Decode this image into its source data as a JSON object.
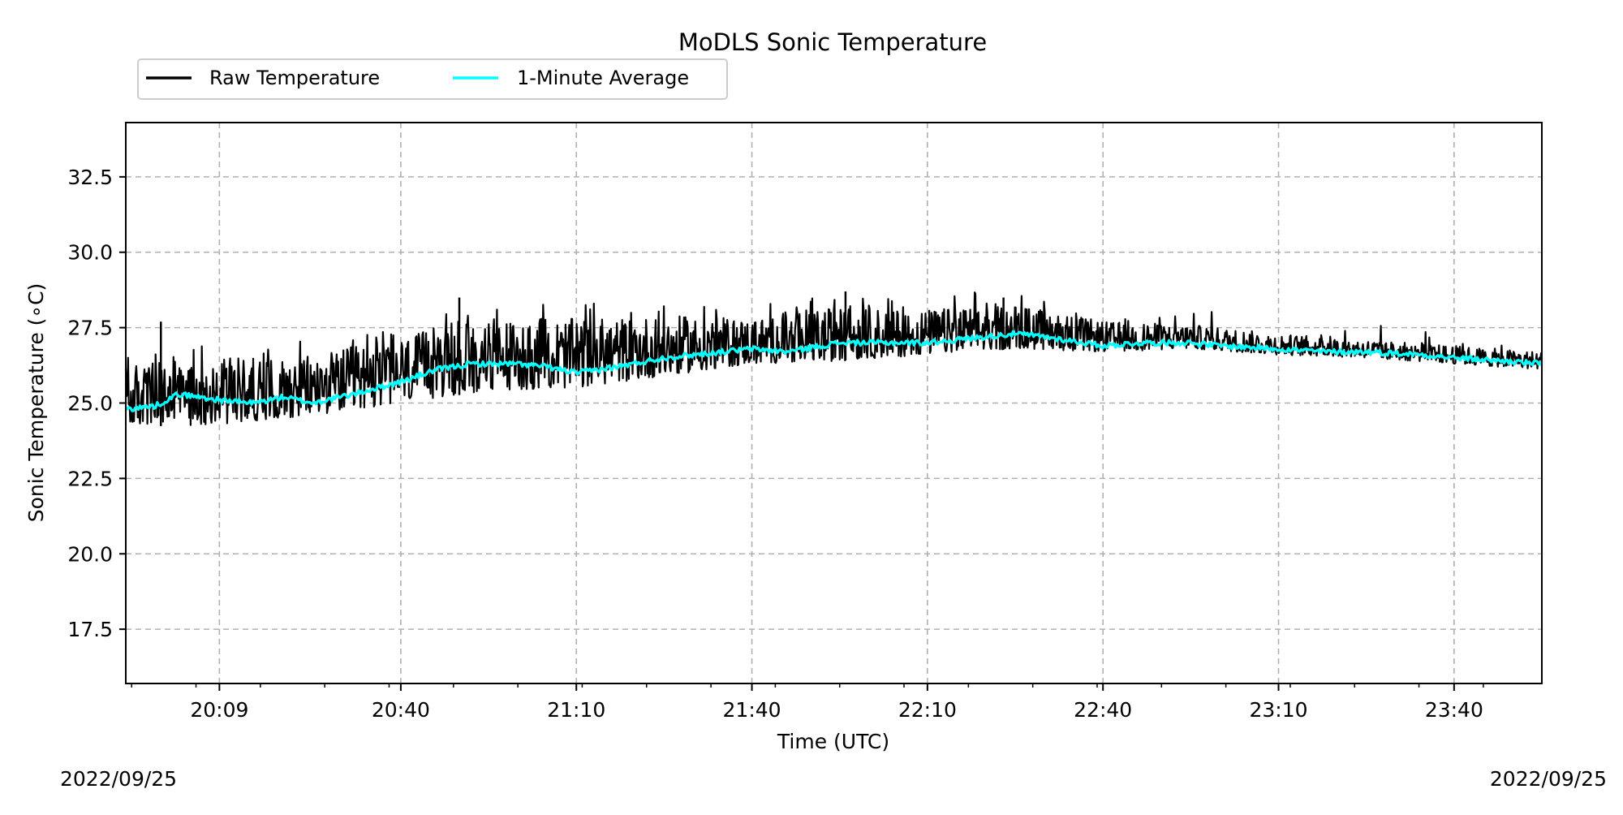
{
  "chart_data": {
    "type": "line",
    "title": "MoDLS Sonic Temperature",
    "xlabel": "Time (UTC)",
    "ylabel": "Sonic Temperature (∘C)",
    "ylim": [
      15.7,
      34.3
    ],
    "xlim": [
      "19:53",
      "23:55"
    ],
    "y_ticks": [
      17.5,
      20.0,
      22.5,
      25.0,
      27.5,
      30.0,
      32.5
    ],
    "x_ticks": [
      "20:09",
      "20:40",
      "21:10",
      "21:40",
      "22:10",
      "22:40",
      "23:10",
      "23:40"
    ],
    "grid": true,
    "legend_position": "top-left outside",
    "date_left": "2022/09/25",
    "date_right": "2022/09/25",
    "colors": {
      "raw": "#000000",
      "average": "#00ffff",
      "grid": "#b0b0b0"
    },
    "series": [
      {
        "name": "Raw Temperature",
        "x": [
          "19:53",
          "20:09",
          "20:25",
          "20:40",
          "20:55",
          "21:10",
          "21:25",
          "21:40",
          "21:55",
          "22:10",
          "22:25",
          "22:40",
          "22:55",
          "23:10",
          "23:25",
          "23:40",
          "23:55"
        ],
        "band_low": [
          24.2,
          24.3,
          24.6,
          25.0,
          25.4,
          25.5,
          25.9,
          26.3,
          26.4,
          26.6,
          26.8,
          26.7,
          26.8,
          26.6,
          26.5,
          26.3,
          26.1
        ],
        "band_high": [
          26.3,
          26.5,
          26.6,
          27.2,
          27.8,
          27.8,
          27.9,
          27.8,
          28.2,
          28.1,
          28.3,
          27.7,
          27.6,
          27.3,
          27.1,
          26.9,
          26.7
        ],
        "spike_peaks": [
          [
            "19:59",
            27.7
          ],
          [
            "20:50",
            28.5
          ],
          [
            "21:56",
            28.7
          ],
          [
            "22:23",
            28.5
          ]
        ]
      },
      {
        "name": "1-Minute Average",
        "x": [
          "19:53",
          "19:58",
          "20:02",
          "20:09",
          "20:15",
          "20:20",
          "20:25",
          "20:32",
          "20:40",
          "20:46",
          "20:52",
          "21:00",
          "21:05",
          "21:10",
          "21:17",
          "21:25",
          "21:30",
          "21:40",
          "21:46",
          "21:55",
          "22:00",
          "22:10",
          "22:15",
          "22:25",
          "22:30",
          "22:40",
          "22:47",
          "22:55",
          "23:00",
          "23:10",
          "23:18",
          "23:25",
          "23:35",
          "23:40",
          "23:48",
          "23:55"
        ],
        "values": [
          24.8,
          24.9,
          25.3,
          25.1,
          25.0,
          25.2,
          25.0,
          25.3,
          25.7,
          26.1,
          26.3,
          26.3,
          26.2,
          26.0,
          26.2,
          26.5,
          26.6,
          26.8,
          26.7,
          27.0,
          27.0,
          27.0,
          27.1,
          27.3,
          27.2,
          26.9,
          27.0,
          27.0,
          26.9,
          26.8,
          26.7,
          26.7,
          26.6,
          26.5,
          26.4,
          26.3
        ]
      }
    ]
  }
}
